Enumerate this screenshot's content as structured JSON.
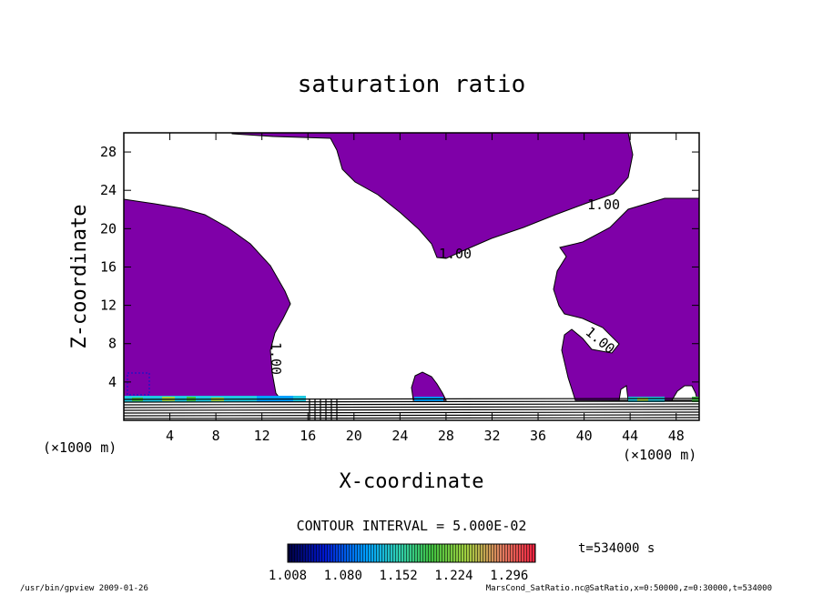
{
  "chart_data": {
    "type": "contour",
    "title": "saturation ratio",
    "xlabel": "X-coordinate",
    "ylabel": "Z-coordinate",
    "x_unit_note": "(×1000 m)",
    "y_unit_note": "(×1000 m)",
    "xlim": [
      0,
      50
    ],
    "ylim": [
      0,
      30
    ],
    "x_ticks": [
      4,
      8,
      12,
      16,
      20,
      24,
      28,
      32,
      36,
      40,
      44,
      48
    ],
    "y_ticks": [
      4,
      8,
      12,
      16,
      20,
      24,
      28
    ],
    "contour_interval_label": "CONTOUR INTERVAL = 5.000E-02",
    "contour_labels": [
      {
        "text": "1.00",
        "x": 41.0,
        "z": 22.2
      },
      {
        "text": "1.00",
        "x": 28.6,
        "z": 17.4
      },
      {
        "text": "1.00",
        "x": 40.6,
        "z": 8.0,
        "angle": 40
      },
      {
        "text": "1.00",
        "x": 12.6,
        "z": 6.4,
        "angle": 90
      }
    ],
    "colorbar_ticks": [
      "1.008",
      "1.080",
      "1.152",
      "1.224",
      "1.296"
    ],
    "colorbar_range": [
      1.008,
      1.33
    ],
    "time_label": "t=534000 s",
    "regions": [
      {
        "name": "left-saturated-region",
        "color": "#7f00a8"
      },
      {
        "name": "top-center-saturated-region",
        "color": "#7f00a8"
      },
      {
        "name": "right-saturated-region",
        "color": "#7f00a8"
      },
      {
        "name": "small-bump-region",
        "color": "#7f00a8"
      }
    ]
  },
  "footer": {
    "left": "/usr/bin/gpview  2009-01-26",
    "right": "MarsCond_SatRatio.nc@SatRatio,x=0:50000,z=0:30000,t=534000"
  },
  "colors": {
    "saturated": "#7f00a8",
    "colorbar_stops": [
      "#000040",
      "#0018d0",
      "#00a0ff",
      "#30d0b0",
      "#40c040",
      "#a0d040",
      "#e08060",
      "#f02040"
    ]
  }
}
